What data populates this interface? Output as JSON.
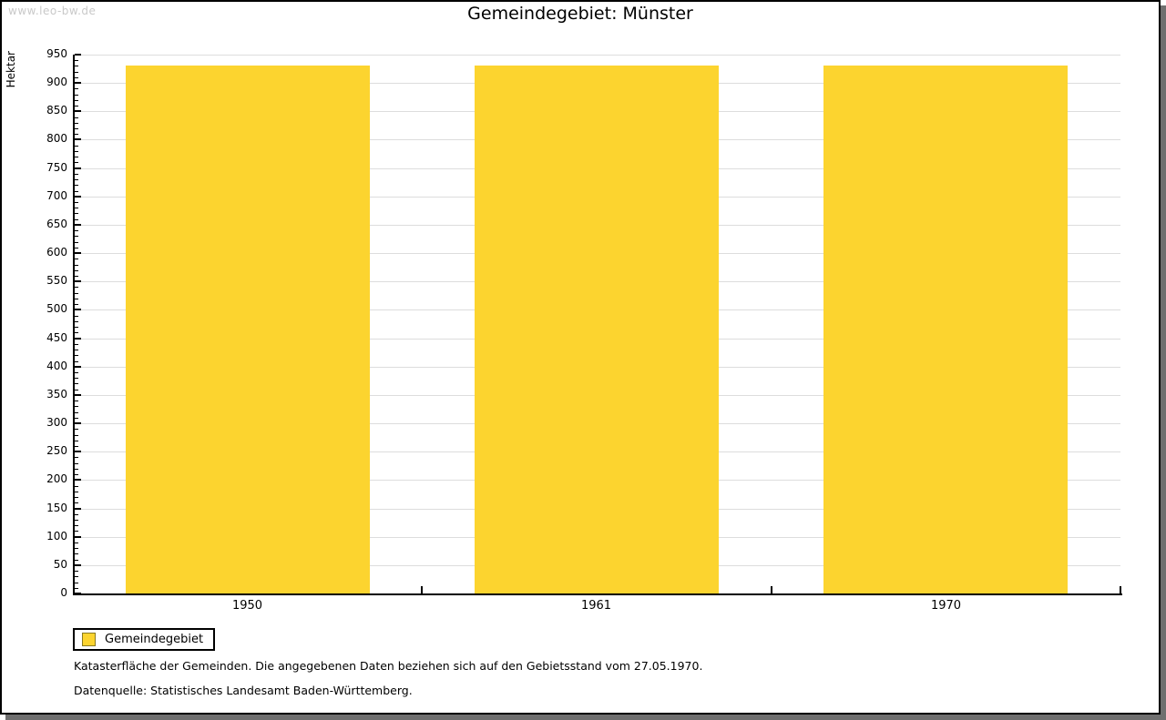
{
  "watermark": "www.leo-bw.de",
  "legend": {
    "label": "Gemeindegebiet"
  },
  "footnotes": [
    "Katasterfläche der Gemeinden. Die angegebenen Daten beziehen sich auf den Gebietsstand vom 27.05.1970.",
    "Datenquelle: Statistisches Landesamt Baden-Württemberg."
  ],
  "colors": {
    "bar": "#fcd42f",
    "bar_swatch_border": "#8a7a20",
    "grid": "#dddddd",
    "axis": "#000000",
    "watermark": "#c9c9c9",
    "frame_shadow": "#6f6f6f"
  },
  "chart_data": {
    "type": "bar",
    "title": "Gemeindegebiet: Münster",
    "categories": [
      "1950",
      "1961",
      "1970"
    ],
    "series": [
      {
        "name": "Gemeindegebiet",
        "values": [
          931,
          931,
          931
        ]
      }
    ],
    "xlabel": "",
    "ylabel": "Hektar",
    "ylim": [
      0,
      950
    ],
    "ytick_major": 50,
    "ytick_minor": 10,
    "grid": true,
    "bar_width_fraction": 0.7,
    "legend_position": "bottom-left"
  }
}
